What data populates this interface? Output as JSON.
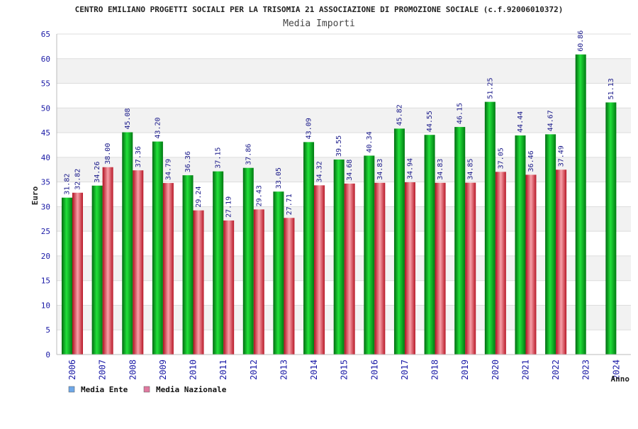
{
  "chart_data": {
    "type": "bar",
    "title": "CENTRO EMILIANO PROGETTI SOCIALI PER LA TRISOMIA 21 ASSOCIAZIONE DI PROMOZIONE SOCIALE (c.f.92006010372)",
    "subtitle": "Media Importi",
    "xlabel": "Anno",
    "ylabel": "Euro",
    "ylim": [
      0,
      65
    ],
    "yticks": [
      "0",
      "5",
      "10",
      "15",
      "20",
      "25",
      "30",
      "35",
      "40",
      "45",
      "50",
      "55",
      "60",
      "65"
    ],
    "grid": true,
    "legend_position": "bottom-left",
    "categories": [
      "2006",
      "2007",
      "2008",
      "2009",
      "2010",
      "2011",
      "2012",
      "2013",
      "2014",
      "2015",
      "2016",
      "2017",
      "2018",
      "2019",
      "2020",
      "2021",
      "2022",
      "2023",
      "2024"
    ],
    "series": [
      {
        "name": "Media Ente",
        "color": "#00b01a",
        "legend_color": "#6fa8e8",
        "values": [
          31.82,
          34.26,
          45.08,
          43.2,
          36.36,
          37.15,
          37.86,
          33.05,
          43.09,
          39.55,
          40.34,
          45.82,
          44.55,
          46.15,
          51.25,
          44.44,
          44.67,
          60.86,
          51.13
        ],
        "labels": [
          "31.82",
          "34.26",
          "45.08",
          "43.20",
          "36.36",
          "37.15",
          "37.86",
          "33.05",
          "43.09",
          "39.55",
          "40.34",
          "45.82",
          "44.55",
          "46.15",
          "51.25",
          "44.44",
          "44.67",
          "60.86",
          "51.13"
        ]
      },
      {
        "name": "Media Nazionale",
        "color": "#e0303c",
        "legend_color": "#e07aa0",
        "values": [
          32.82,
          38.0,
          37.36,
          34.79,
          29.24,
          27.19,
          29.43,
          27.71,
          34.32,
          34.68,
          34.83,
          34.94,
          34.83,
          34.85,
          37.05,
          36.46,
          37.49,
          null,
          null
        ],
        "labels": [
          "32.82",
          "38.00",
          "37.36",
          "34.79",
          "29.24",
          "27.19",
          "29.43",
          "27.71",
          "34.32",
          "34.68",
          "34.83",
          "34.94",
          "34.83",
          "34.85",
          "37.05",
          "36.46",
          "37.49",
          "",
          ""
        ]
      }
    ]
  }
}
